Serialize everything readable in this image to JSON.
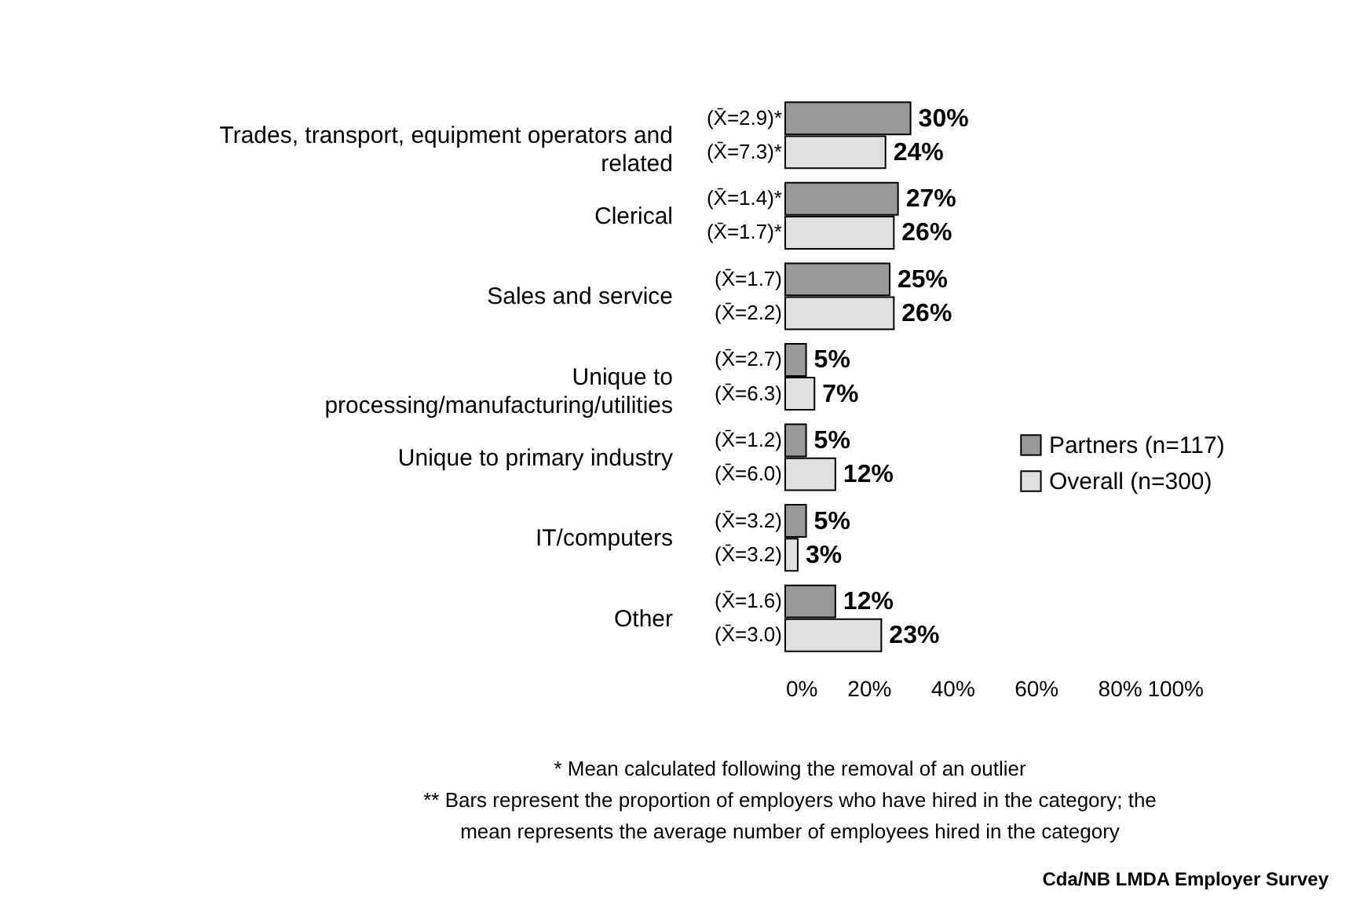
{
  "chart_data": {
    "type": "bar",
    "orientation": "horizontal",
    "categories": [
      "Trades, transport, equipment operators and related",
      "Clerical",
      "Sales and service",
      "Unique to processing/manufacturing/utilities",
      "Unique to primary industry",
      "IT/computers",
      "Other"
    ],
    "series": [
      {
        "name": "Partners (n=117)",
        "color": "#999999",
        "values": [
          30,
          27,
          25,
          5,
          5,
          5,
          12
        ],
        "value_labels": [
          "30%",
          "27%",
          "25%",
          "5%",
          "5%",
          "5%",
          "12%"
        ]
      },
      {
        "name": "Overall (n=300)",
        "color": "#e0e0e0",
        "values": [
          24,
          26,
          26,
          7,
          12,
          3,
          23
        ],
        "value_labels": [
          "24%",
          "26%",
          "26%",
          "7%",
          "12%",
          "3%",
          "23%"
        ]
      }
    ],
    "xlim": [
      0,
      100
    ],
    "xticks": [
      {
        "value": 0,
        "label": "0%"
      },
      {
        "value": 20,
        "label": "20%"
      },
      {
        "value": 40,
        "label": "40%"
      },
      {
        "value": 60,
        "label": "60%"
      },
      {
        "value": 80,
        "label": "80%"
      },
      {
        "value": 100,
        "label": "100%"
      }
    ],
    "grid": false,
    "legend": "right",
    "annotations": [
      "(X̄=2.9)*",
      "(X̄=7.3)*",
      "(X̄=1.4)*",
      "(X̄=1.7)*",
      "(X̄=1.7)",
      "(X̄=2.2)",
      "(X̄=2.7)",
      "(X̄=6.3)",
      "(X̄=1.2)",
      "(X̄=6.0)",
      "(X̄=3.2)",
      "(X̄=3.2)",
      "(X̄=1.6)",
      "(X̄=3.0)",
      "* Mean calculated following the removal of an outlier",
      "** Bars represent the proportion of employers who have hired in the category; the",
      "mean represents the average number of employees hired in the category",
      "Cda/NB LMDA Employer Survey"
    ]
  }
}
